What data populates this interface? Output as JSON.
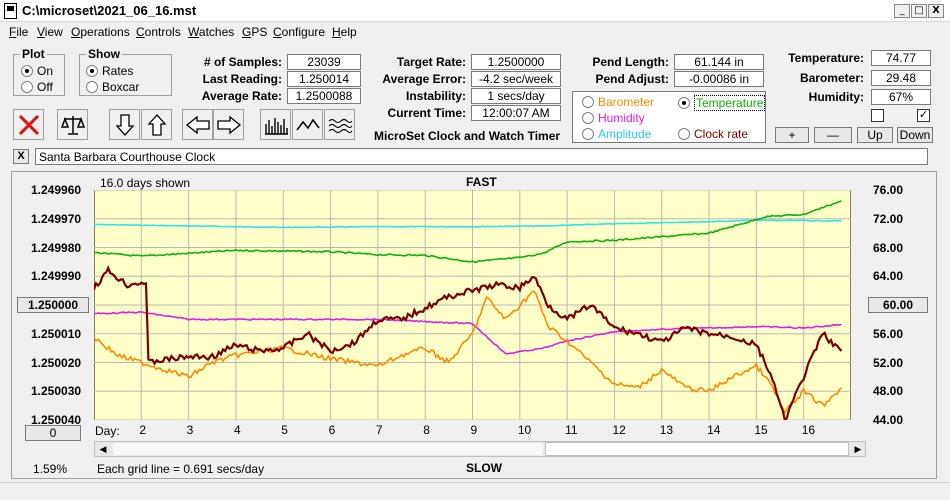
{
  "window": {
    "title": "C:\\microset\\2021_06_16.mst",
    "minimize": "_",
    "maximize": "□",
    "close": "X"
  },
  "menu": [
    {
      "label": "File",
      "u": "F",
      "rest": "ile"
    },
    {
      "label": "View",
      "u": "V",
      "rest": "iew"
    },
    {
      "label": "Operations",
      "u": "O",
      "rest": "perations"
    },
    {
      "label": "Controls",
      "u": "C",
      "rest": "ontrols"
    },
    {
      "label": "Watches",
      "u": "W",
      "rest": "atches"
    },
    {
      "label": "GPS",
      "u": "G",
      "rest": "PS"
    },
    {
      "label": "Configure",
      "u": "C",
      "rest": "onfigure"
    },
    {
      "label": "Help",
      "u": "H",
      "rest": "elp"
    }
  ],
  "plot": {
    "title": "Plot",
    "on": "On",
    "off": "Off",
    "selected": "On"
  },
  "show": {
    "title": "Show",
    "rates": "Rates",
    "boxcar": "Boxcar",
    "selected": "Rates"
  },
  "stats": {
    "samples_label": "# of Samples:",
    "samples": "23039",
    "last_label": "Last Reading:",
    "last": "1.250014",
    "avg_label": "Average Rate:",
    "avg": "1.2500088"
  },
  "targets": {
    "target_label": "Target Rate:",
    "target": "1.2500000",
    "error_label": "Average Error:",
    "error": "-4.2 sec/week",
    "instab_label": "Instability:",
    "instab": "1 secs/day",
    "time_label": "Current Time:",
    "time": "12:00:07 AM"
  },
  "app_name": "MicroSet Clock and Watch Timer",
  "pend": {
    "length_label": "Pend Length:",
    "length": "61.144 in",
    "adjust_label": "Pend Adjust:",
    "adjust": "-0.00086 in"
  },
  "sensor_select": {
    "barometer": "Barometer",
    "temperature": "Temperature",
    "humidity": "Humidity",
    "amplitude": "Amplitude",
    "clock_rate": "Clock rate",
    "selected": "Temperature"
  },
  "env": {
    "temp_label": "Temperature:",
    "temp": "74.77",
    "baro_label": "Barometer:",
    "baro": "29.48",
    "hum_label": "Humidity:",
    "hum": "67%",
    "check_right": "✓"
  },
  "buttons": {
    "plus": "+",
    "minus": "—",
    "up": "Up",
    "down": "Down",
    "clear": "X"
  },
  "watch_name": "Santa Barbara Courthouse Clock",
  "colors": {
    "plot_bg": "#ffffc8",
    "rate": "#7a0000",
    "temperature": "#10b010",
    "barometer": "#ff8800",
    "humidity": "#e020e0",
    "amplitude": "#30e0f0"
  },
  "chart_data": {
    "type": "line",
    "days_shown": "16.0 days shown",
    "top_label": "FAST",
    "bottom_label": "SLOW",
    "grid_note": "Each grid line = 0.691 secs/day",
    "x_label": "Day:",
    "x_ticks": [
      "2",
      "3",
      "4",
      "5",
      "6",
      "7",
      "8",
      "9",
      "10",
      "11",
      "12",
      "13",
      "14",
      "15",
      "16"
    ],
    "x_range": [
      1.0,
      17.0
    ],
    "y_left_ticks": [
      "1.249960",
      "1.249970",
      "1.249980",
      "1.249990",
      "1.250000",
      "1.250010",
      "1.250020",
      "1.250030",
      "1.250040"
    ],
    "y_left_range": [
      1.24996,
      1.25004
    ],
    "y_left_center_button": "1.250000",
    "y_right_ticks": [
      "76.00",
      "72.00",
      "68.00",
      "64.00",
      "60.00",
      "56.00",
      "52.00",
      "48.00",
      "44.00"
    ],
    "y_right_range": [
      76,
      44
    ],
    "y_right_center_button": "60.00",
    "left_bottom_button": "0",
    "percent": "1.59%",
    "series": [
      {
        "key": "amplitude",
        "x": [
          1.0,
          3,
          5,
          7,
          9,
          10.5,
          12,
          14,
          15,
          16.8
        ],
        "y": [
          71.2,
          71.0,
          70.8,
          70.9,
          70.9,
          71.0,
          71.3,
          71.6,
          71.8,
          71.7
        ]
      },
      {
        "key": "temperature",
        "x": [
          1.0,
          2,
          3,
          4,
          5,
          6,
          7,
          8,
          9,
          10,
          10.5,
          11,
          12,
          13,
          14,
          14.8,
          15.2,
          16,
          16.5,
          16.8
        ],
        "y": [
          67.3,
          66.8,
          67.2,
          67.6,
          67.5,
          67.4,
          67.0,
          66.9,
          66.0,
          66.6,
          67.2,
          68.8,
          69.0,
          69.5,
          70.0,
          71.5,
          72.3,
          72.6,
          73.8,
          74.5
        ]
      },
      {
        "key": "humidity",
        "x": [
          1.0,
          2,
          3,
          5,
          7,
          9,
          9.7,
          10.5,
          11,
          12,
          13,
          14,
          15,
          16,
          16.8
        ],
        "y": [
          58.8,
          59.0,
          58.0,
          58.0,
          58.0,
          57.4,
          53.2,
          54.0,
          55.0,
          56.3,
          56.6,
          56.8,
          57.0,
          56.8,
          57.3
        ]
      },
      {
        "key": "barometer",
        "x": [
          1.0,
          1.5,
          2,
          2.5,
          3,
          3.5,
          4,
          5,
          6,
          7,
          7.5,
          8,
          8.5,
          9,
          9.3,
          9.7,
          10,
          10.3,
          10.6,
          11,
          11.5,
          12,
          12.5,
          13,
          13.5,
          14,
          14.5,
          15,
          15.3,
          15.6,
          16,
          16.4,
          16.8
        ],
        "y": [
          55.5,
          53.0,
          52.0,
          51.0,
          50.0,
          52.0,
          53.0,
          54.0,
          52.5,
          51.5,
          53.0,
          54.0,
          52.0,
          56.0,
          61.0,
          58.0,
          60.0,
          62.0,
          57.0,
          55.0,
          52.0,
          49.0,
          48.5,
          51.0,
          48.5,
          48.0,
          50.0,
          51.5,
          49.0,
          45.0,
          48.0,
          46.0,
          48.5
        ]
      },
      {
        "key": "rate",
        "x": [
          1.0,
          1.3,
          1.7,
          2.1,
          2.15,
          2.5,
          3,
          3.5,
          4,
          4.5,
          5,
          5.5,
          6,
          6.5,
          7,
          7.5,
          8,
          8.5,
          9,
          9.5,
          10,
          10.3,
          10.6,
          11,
          11.5,
          12,
          12.5,
          13,
          13.5,
          14,
          14.5,
          15,
          15.3,
          15.6,
          16,
          16.4,
          16.8
        ],
        "y": [
          1.249994,
          1.249988,
          1.249993,
          1.249992,
          1.25002,
          1.250019,
          1.250018,
          1.250018,
          1.250014,
          1.250016,
          1.250015,
          1.25001,
          1.250016,
          1.250013,
          1.250005,
          1.250005,
          1.250001,
          1.249997,
          1.249995,
          1.249993,
          1.249994,
          1.24999,
          1.25,
          1.250005,
          1.25,
          1.250008,
          1.25001,
          1.250013,
          1.250008,
          1.25001,
          1.250011,
          1.250014,
          1.250024,
          1.25004,
          1.250025,
          1.25001,
          1.250016
        ]
      }
    ]
  }
}
